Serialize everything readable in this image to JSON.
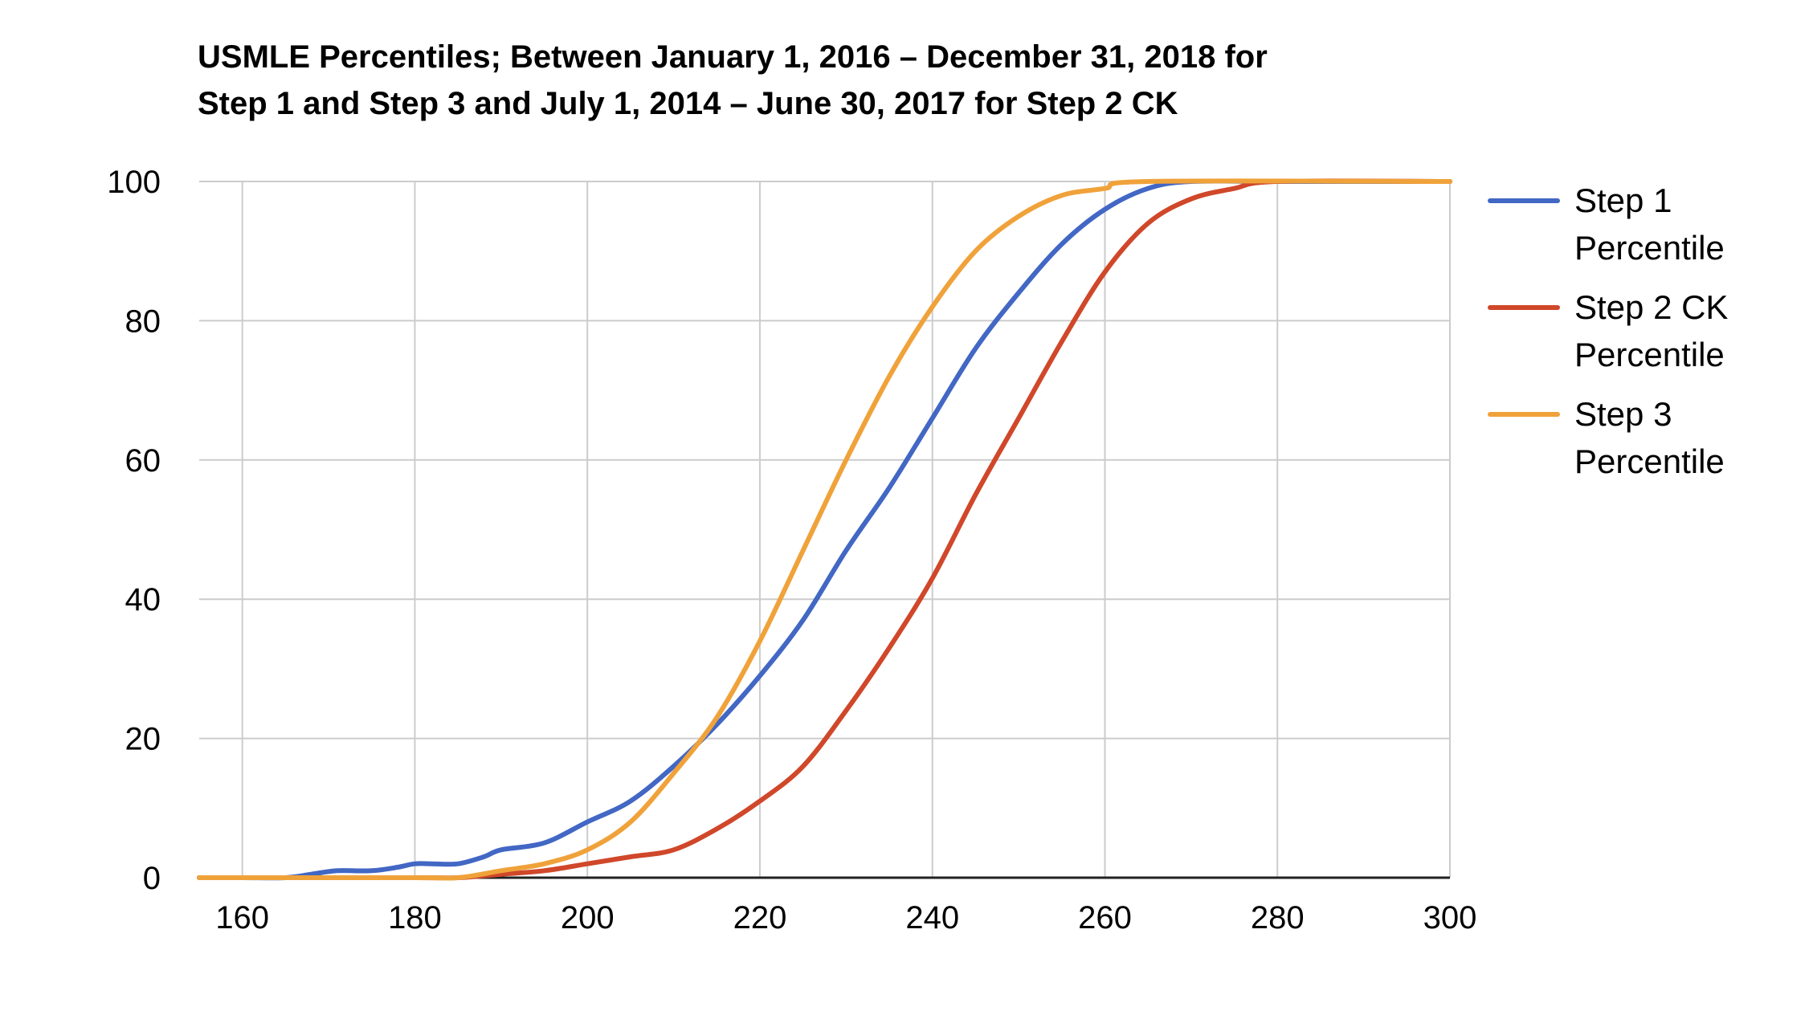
{
  "chart_data": {
    "type": "line",
    "title_lines": [
      "USMLE Percentiles; Between January 1, 2016 – December 31, 2018 for",
      "Step 1 and Step 3 and July 1, 2014 – June 30, 2017 for Step 2 CK"
    ],
    "xlabel": "",
    "ylabel": "",
    "xlim": [
      155,
      300
    ],
    "ylim": [
      0,
      100
    ],
    "x_ticks": [
      160,
      180,
      200,
      220,
      240,
      260,
      280,
      300
    ],
    "y_ticks": [
      0,
      20,
      40,
      60,
      80,
      100
    ],
    "grid": true,
    "legend_position": "right",
    "series": [
      {
        "name": "Step 1 Percentile",
        "label_lines": [
          "Step 1",
          "Percentile"
        ],
        "color": "#4267C4",
        "points": [
          [
            155,
            0
          ],
          [
            160,
            0
          ],
          [
            165,
            0
          ],
          [
            168,
            0.5
          ],
          [
            171,
            1
          ],
          [
            175,
            1
          ],
          [
            178,
            1.5
          ],
          [
            180,
            2
          ],
          [
            182,
            2
          ],
          [
            185,
            2
          ],
          [
            188,
            3
          ],
          [
            190,
            4
          ],
          [
            195,
            5
          ],
          [
            200,
            8
          ],
          [
            205,
            11
          ],
          [
            210,
            16
          ],
          [
            215,
            22
          ],
          [
            220,
            29
          ],
          [
            225,
            37
          ],
          [
            230,
            47
          ],
          [
            235,
            56
          ],
          [
            240,
            66
          ],
          [
            245,
            76
          ],
          [
            250,
            84
          ],
          [
            255,
            91
          ],
          [
            260,
            96
          ],
          [
            265,
            99
          ],
          [
            270,
            100
          ],
          [
            280,
            100
          ],
          [
            300,
            100
          ]
        ]
      },
      {
        "name": "Step 2 CK Percentile",
        "label_lines": [
          "Step 2 CK",
          "Percentile"
        ],
        "color": "#D0472A",
        "points": [
          [
            155,
            0
          ],
          [
            180,
            0
          ],
          [
            185,
            0
          ],
          [
            190,
            0.5
          ],
          [
            195,
            1
          ],
          [
            200,
            2
          ],
          [
            205,
            3
          ],
          [
            210,
            4
          ],
          [
            215,
            7
          ],
          [
            220,
            11
          ],
          [
            225,
            16
          ],
          [
            230,
            24
          ],
          [
            235,
            33
          ],
          [
            240,
            43
          ],
          [
            245,
            55
          ],
          [
            250,
            66
          ],
          [
            255,
            77
          ],
          [
            260,
            87
          ],
          [
            265,
            94
          ],
          [
            270,
            97.5
          ],
          [
            275,
            99
          ],
          [
            280,
            100
          ],
          [
            300,
            100
          ]
        ]
      },
      {
        "name": "Step 3 Percentile",
        "label_lines": [
          "Step 3",
          "Percentile"
        ],
        "color": "#F0A23A",
        "points": [
          [
            155,
            0
          ],
          [
            180,
            0
          ],
          [
            185,
            0
          ],
          [
            190,
            1
          ],
          [
            195,
            2
          ],
          [
            200,
            4
          ],
          [
            205,
            8
          ],
          [
            210,
            15
          ],
          [
            215,
            23
          ],
          [
            220,
            34
          ],
          [
            225,
            47
          ],
          [
            230,
            60
          ],
          [
            235,
            72
          ],
          [
            240,
            82
          ],
          [
            245,
            90
          ],
          [
            250,
            95
          ],
          [
            255,
            98
          ],
          [
            260,
            99
          ],
          [
            265,
            100
          ],
          [
            300,
            100
          ]
        ]
      }
    ]
  }
}
